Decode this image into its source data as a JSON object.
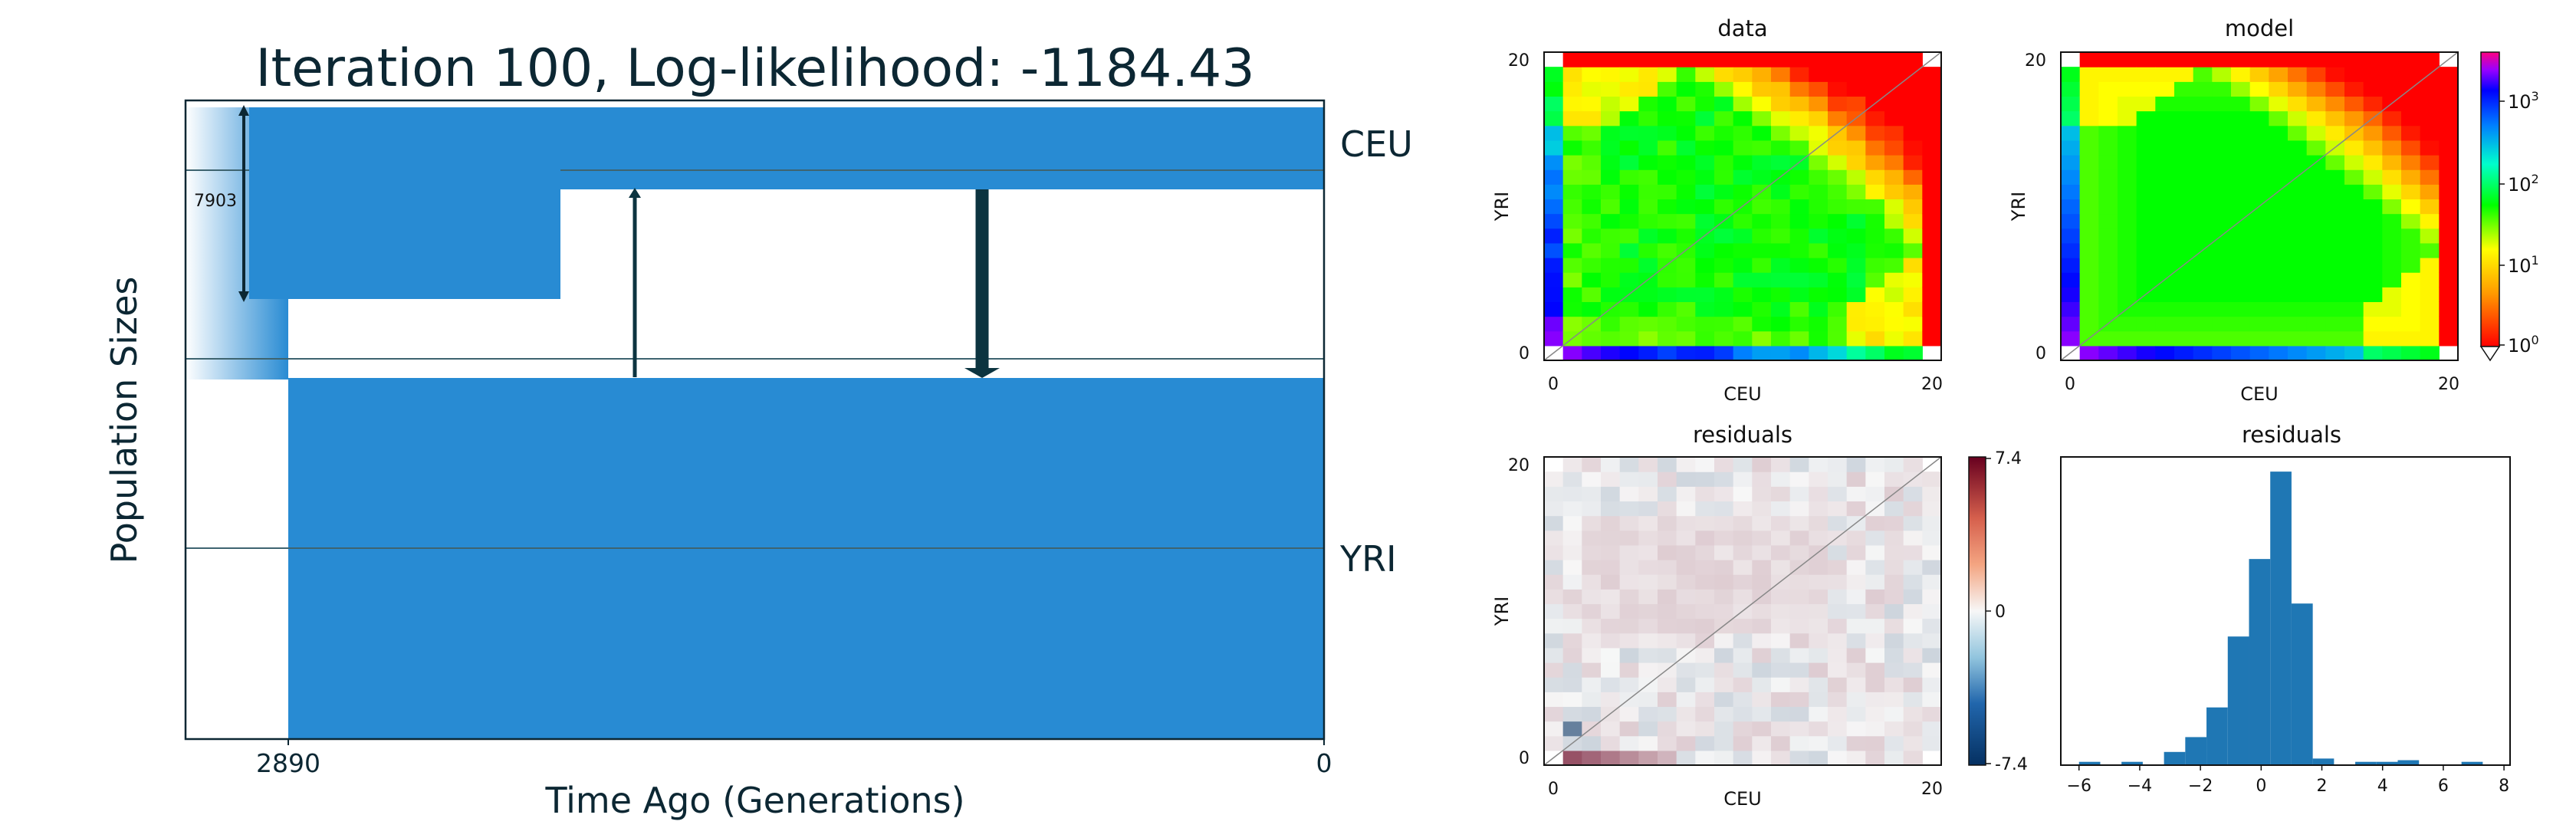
{
  "colors": {
    "accent": "#288bd3",
    "text": "#0c2733",
    "arrow": "#0c3440",
    "hist": "#1f77b4"
  },
  "demography": {
    "title": "Iteration 100, Log-likelihood: -1184.43",
    "ylabel": "Population Sizes",
    "xlabel": "Time Ago (Generations)",
    "ticks": {
      "split": "2890",
      "present": "0"
    },
    "populations": [
      "CEU",
      "YRI"
    ],
    "size_label": "7903",
    "split_time": 2890,
    "pulses": [
      {
        "direction": "YRI to CEU",
        "time_fraction": 0.69,
        "strength": "weak"
      },
      {
        "direction": "CEU to YRI",
        "time_fraction": 0.33,
        "strength": "strong"
      }
    ]
  },
  "chart_data": [
    {
      "type": "heatmap",
      "title": "data",
      "xlabel": "CEU",
      "ylabel": "YRI",
      "x_ticks": [
        "0",
        "20"
      ],
      "y_ticks": [
        "0",
        "20"
      ],
      "grid_size": 21,
      "scale": "log",
      "colormap": "gist_rainbow_r"
    },
    {
      "type": "heatmap",
      "title": "model",
      "xlabel": "CEU",
      "ylabel": "YRI",
      "x_ticks": [
        "0",
        "20"
      ],
      "y_ticks": [
        "0",
        "20"
      ],
      "grid_size": 21,
      "scale": "log",
      "colormap": "gist_rainbow_r",
      "colorbar": {
        "ticks": [
          "10",
          "10",
          "10",
          "10"
        ],
        "exponents": [
          "3",
          "2",
          "1",
          "0"
        ]
      }
    },
    {
      "type": "heatmap",
      "title": "residuals",
      "xlabel": "CEU",
      "ylabel": "YRI",
      "x_ticks": [
        "0",
        "20"
      ],
      "y_ticks": [
        "0",
        "20"
      ],
      "grid_size": 21,
      "colormap": "RdBu_r",
      "colorbar": {
        "ticks": [
          "7.4",
          "0",
          "-7.4"
        ],
        "range": [
          -7.4,
          7.4
        ]
      }
    },
    {
      "type": "bar",
      "title": "residuals",
      "x_ticks": [
        "-6",
        "-4",
        "-2",
        "0",
        "2",
        "4",
        "6",
        "8"
      ],
      "xlim": [
        -6.6,
        8.2
      ],
      "bins": [
        {
          "x0": -6.0,
          "x1": -5.3,
          "count": 2
        },
        {
          "x0": -4.6,
          "x1": -3.9,
          "count": 2
        },
        {
          "x0": -3.2,
          "x1": -2.5,
          "count": 8
        },
        {
          "x0": -2.5,
          "x1": -1.8,
          "count": 17
        },
        {
          "x0": -1.8,
          "x1": -1.1,
          "count": 35
        },
        {
          "x0": -1.1,
          "x1": -0.4,
          "count": 78
        },
        {
          "x0": -0.4,
          "x1": 0.3,
          "count": 125
        },
        {
          "x0": 0.3,
          "x1": 1.0,
          "count": 178
        },
        {
          "x0": 1.0,
          "x1": 1.7,
          "count": 98
        },
        {
          "x0": 1.7,
          "x1": 2.4,
          "count": 4
        },
        {
          "x0": 3.1,
          "x1": 3.8,
          "count": 2
        },
        {
          "x0": 3.8,
          "x1": 4.5,
          "count": 2
        },
        {
          "x0": 4.5,
          "x1": 5.2,
          "count": 3
        },
        {
          "x0": 6.6,
          "x1": 7.3,
          "count": 2
        }
      ]
    }
  ]
}
